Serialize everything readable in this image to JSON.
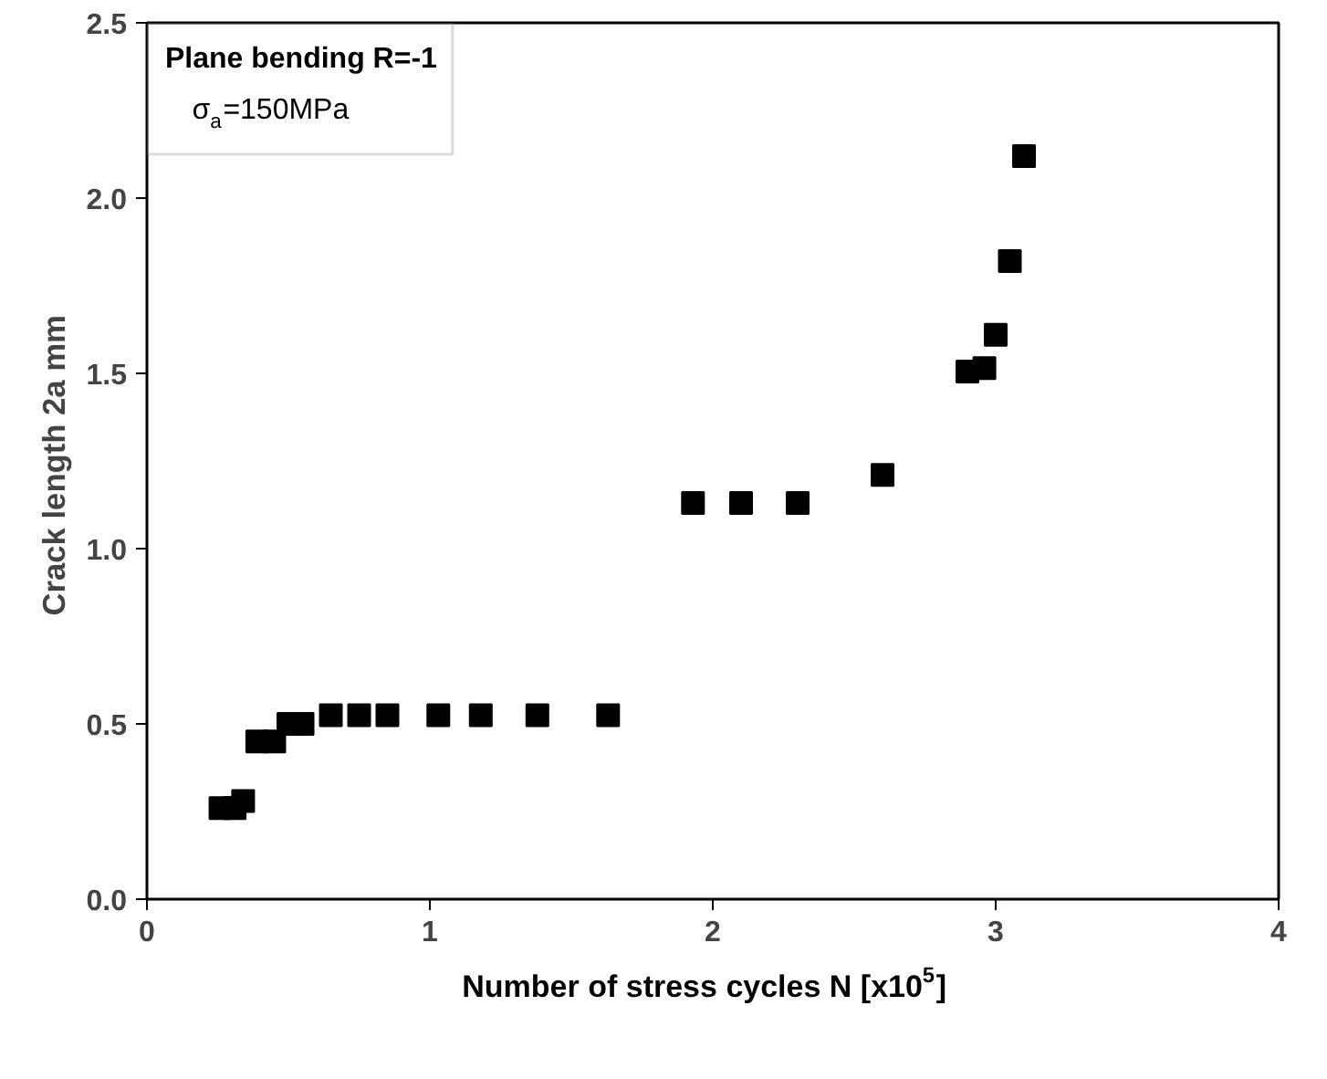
{
  "chart_data": {
    "type": "scatter",
    "xlabel": "Number of stress cycles N [x10$^{5}$]",
    "ylabel": "Crack length 2a  mm",
    "annotations": [
      "Plane bending R=-1",
      "σ$_{a}$=150MPa"
    ],
    "x": [
      0.26,
      0.31,
      0.34,
      0.39,
      0.45,
      0.5,
      0.55,
      0.65,
      0.75,
      0.85,
      1.03,
      1.18,
      1.38,
      1.63,
      1.93,
      2.1,
      2.3,
      2.6,
      2.9,
      2.96,
      3.0,
      3.05,
      3.1
    ],
    "series": [
      {
        "color": "#000000",
        "values": [
          0.26,
          0.26,
          0.28,
          0.45,
          0.45,
          0.5,
          0.5,
          0.525,
          0.525,
          0.525,
          0.525,
          0.525,
          0.525,
          0.525,
          1.13,
          1.13,
          1.13,
          1.21,
          1.505,
          1.515,
          1.61,
          1.82,
          2.12
        ]
      }
    ],
    "xlim": [
      0,
      4
    ],
    "xticks": [
      0,
      1,
      2,
      3,
      4
    ],
    "ylim": [
      0,
      2.5
    ],
    "yticks": [
      {
        "value": 0,
        "label": "0.0"
      },
      {
        "value": 0.5,
        "label": "0.5"
      },
      {
        "value": 1,
        "label": "1.0"
      },
      {
        "value": 1.5,
        "label": "1.5"
      },
      {
        "value": 2,
        "label": "2.0"
      },
      {
        "value": 2.5,
        "label": "2.5"
      }
    ],
    "marker": "square",
    "grid": false
  }
}
